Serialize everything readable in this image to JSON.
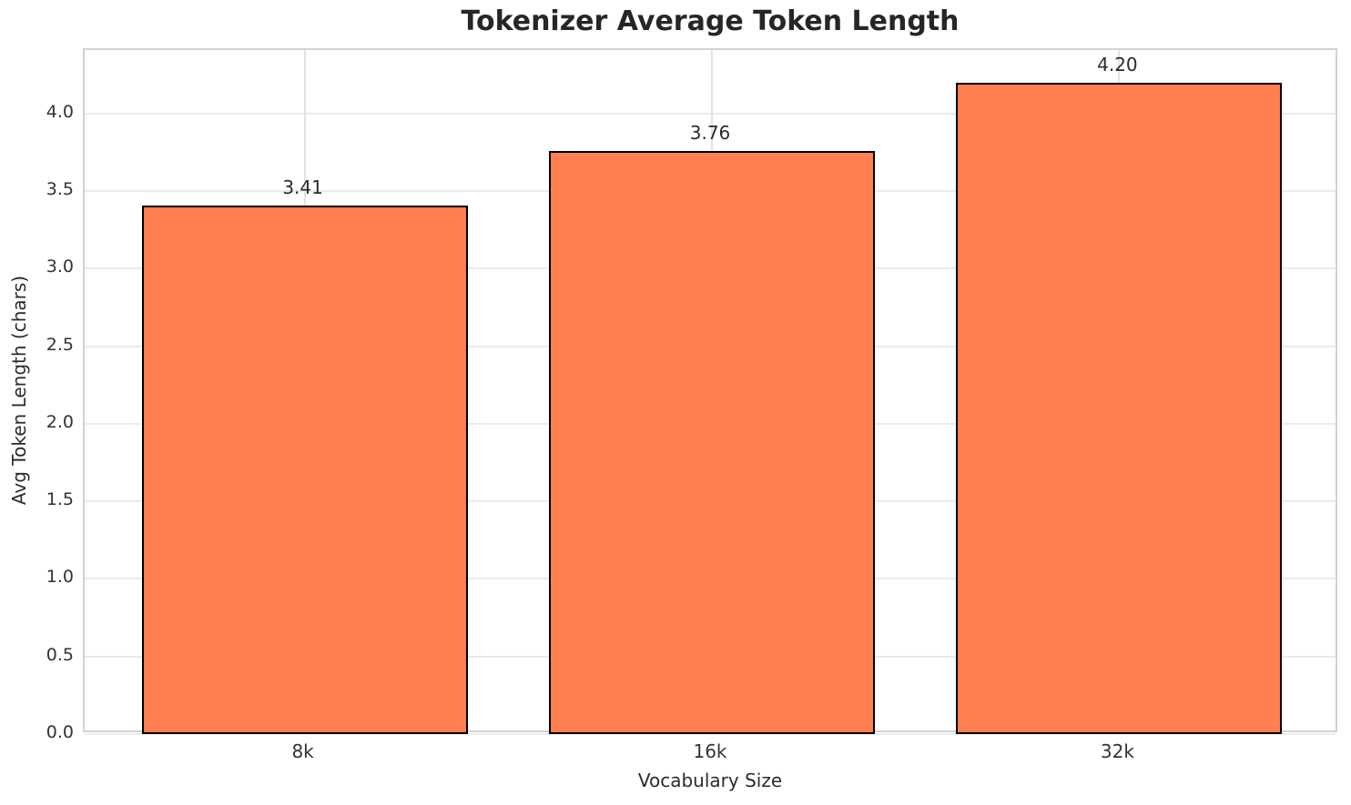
{
  "chart_data": {
    "type": "bar",
    "title": "Tokenizer Average Token Length",
    "xlabel": "Vocabulary Size",
    "ylabel": "Avg Token Length (chars)",
    "categories": [
      "8k",
      "16k",
      "32k"
    ],
    "values": [
      3.41,
      3.76,
      4.2
    ],
    "value_labels": [
      "3.41",
      "3.76",
      "4.20"
    ],
    "ylim": [
      0,
      4.41
    ],
    "ytick_labels": [
      "0.0",
      "0.5",
      "1.0",
      "1.5",
      "2.0",
      "2.5",
      "3.0",
      "3.5",
      "4.0"
    ],
    "grid": true,
    "legend_position": "none",
    "bar_color": "#FF7F50",
    "bar_edge_color": "#000000",
    "bar_width_fraction": 0.8
  }
}
